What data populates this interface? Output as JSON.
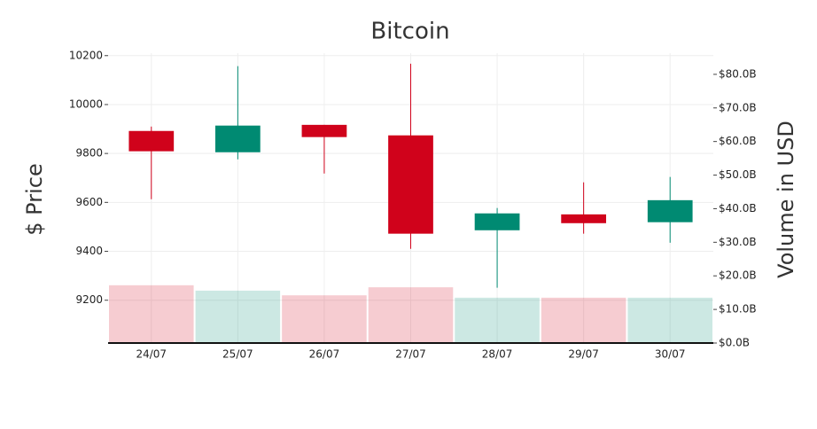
{
  "chart_data": {
    "type": "candlestick",
    "title": "Bitcoin",
    "categories": [
      "24/07",
      "25/07",
      "26/07",
      "27/07",
      "28/07",
      "29/07",
      "30/07"
    ],
    "open": [
      9892,
      9805,
      9917,
      9874,
      9486,
      9551,
      9519
    ],
    "high": [
      9910,
      10157,
      9917,
      10167,
      9577,
      9682,
      9704
    ],
    "low": [
      9613,
      9776,
      9718,
      9410,
      9251,
      9472,
      9435
    ],
    "close": [
      9809,
      9914,
      9867,
      9472,
      9555,
      9515,
      9609
    ],
    "volume": [
      17.2,
      15.6,
      14.2,
      16.6,
      13.5,
      13.5,
      13.5
    ],
    "increasing_color": "#008a72",
    "decreasing_color": "#d0021b",
    "y_label": "$ Price",
    "y2_label": "Volume in USD",
    "ylim": [
      9025,
      10210
    ],
    "yticks": [
      9200,
      9400,
      9600,
      9800,
      10000,
      10200
    ],
    "y2lim": [
      0,
      86.3
    ],
    "y2ticks": [
      {
        "value": 0,
        "label": "$0.0B"
      },
      {
        "value": 10,
        "label": "$10.0B"
      },
      {
        "value": 20,
        "label": "$20.0B"
      },
      {
        "value": 30,
        "label": "$30.0B"
      },
      {
        "value": 40,
        "label": "$40.0B"
      },
      {
        "value": 50,
        "label": "$50.0B"
      },
      {
        "value": 60,
        "label": "$60.0B"
      },
      {
        "value": 70,
        "label": "$70.0B"
      },
      {
        "value": 80,
        "label": "$80.0B"
      }
    ],
    "grid": true
  }
}
